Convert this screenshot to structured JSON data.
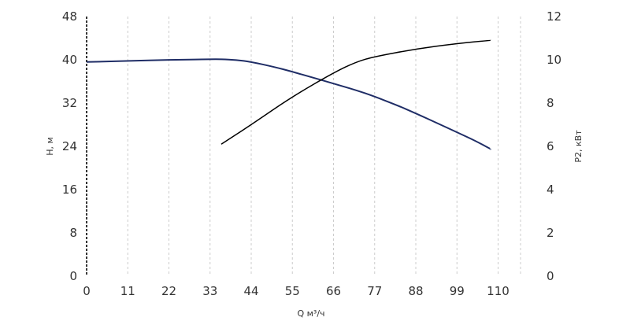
{
  "chart_data": {
    "type": "line",
    "xlabel": "Q м³/ч",
    "ylabel": "H, м",
    "y2label": "P2, кВт",
    "x_ticks": [
      0,
      11,
      22,
      33,
      44,
      55,
      66,
      77,
      88,
      99,
      110
    ],
    "y_ticks": [
      0,
      8,
      16,
      24,
      32,
      40,
      48
    ],
    "y2_ticks": [
      0,
      2,
      4,
      6,
      8,
      10,
      12
    ],
    "xlim": [
      0,
      120
    ],
    "ylim": [
      0,
      48
    ],
    "y2lim": [
      0,
      12
    ],
    "grid": "vertical",
    "series": [
      {
        "name": "",
        "axis": "left",
        "color": "#1f2d66",
        "x": [
          0,
          11,
          22,
          33,
          36,
          40,
          44,
          50,
          55,
          60,
          66,
          72,
          77,
          83,
          88,
          94,
          99,
          104,
          108
        ],
        "y": [
          39.6,
          39.8,
          40.0,
          40.1,
          40.1,
          40.0,
          39.6,
          38.7,
          37.8,
          36.8,
          35.6,
          34.4,
          33.2,
          31.6,
          30.1,
          28.2,
          26.6,
          25.0,
          23.5
        ]
      },
      {
        "name": "",
        "axis": "right",
        "color": "#000000",
        "x": [
          36,
          44,
          55,
          66,
          72,
          77,
          88,
          99,
          108
        ],
        "y": [
          6.1,
          7.0,
          8.3,
          9.4,
          9.9,
          10.15,
          10.5,
          10.75,
          10.9
        ]
      }
    ]
  }
}
